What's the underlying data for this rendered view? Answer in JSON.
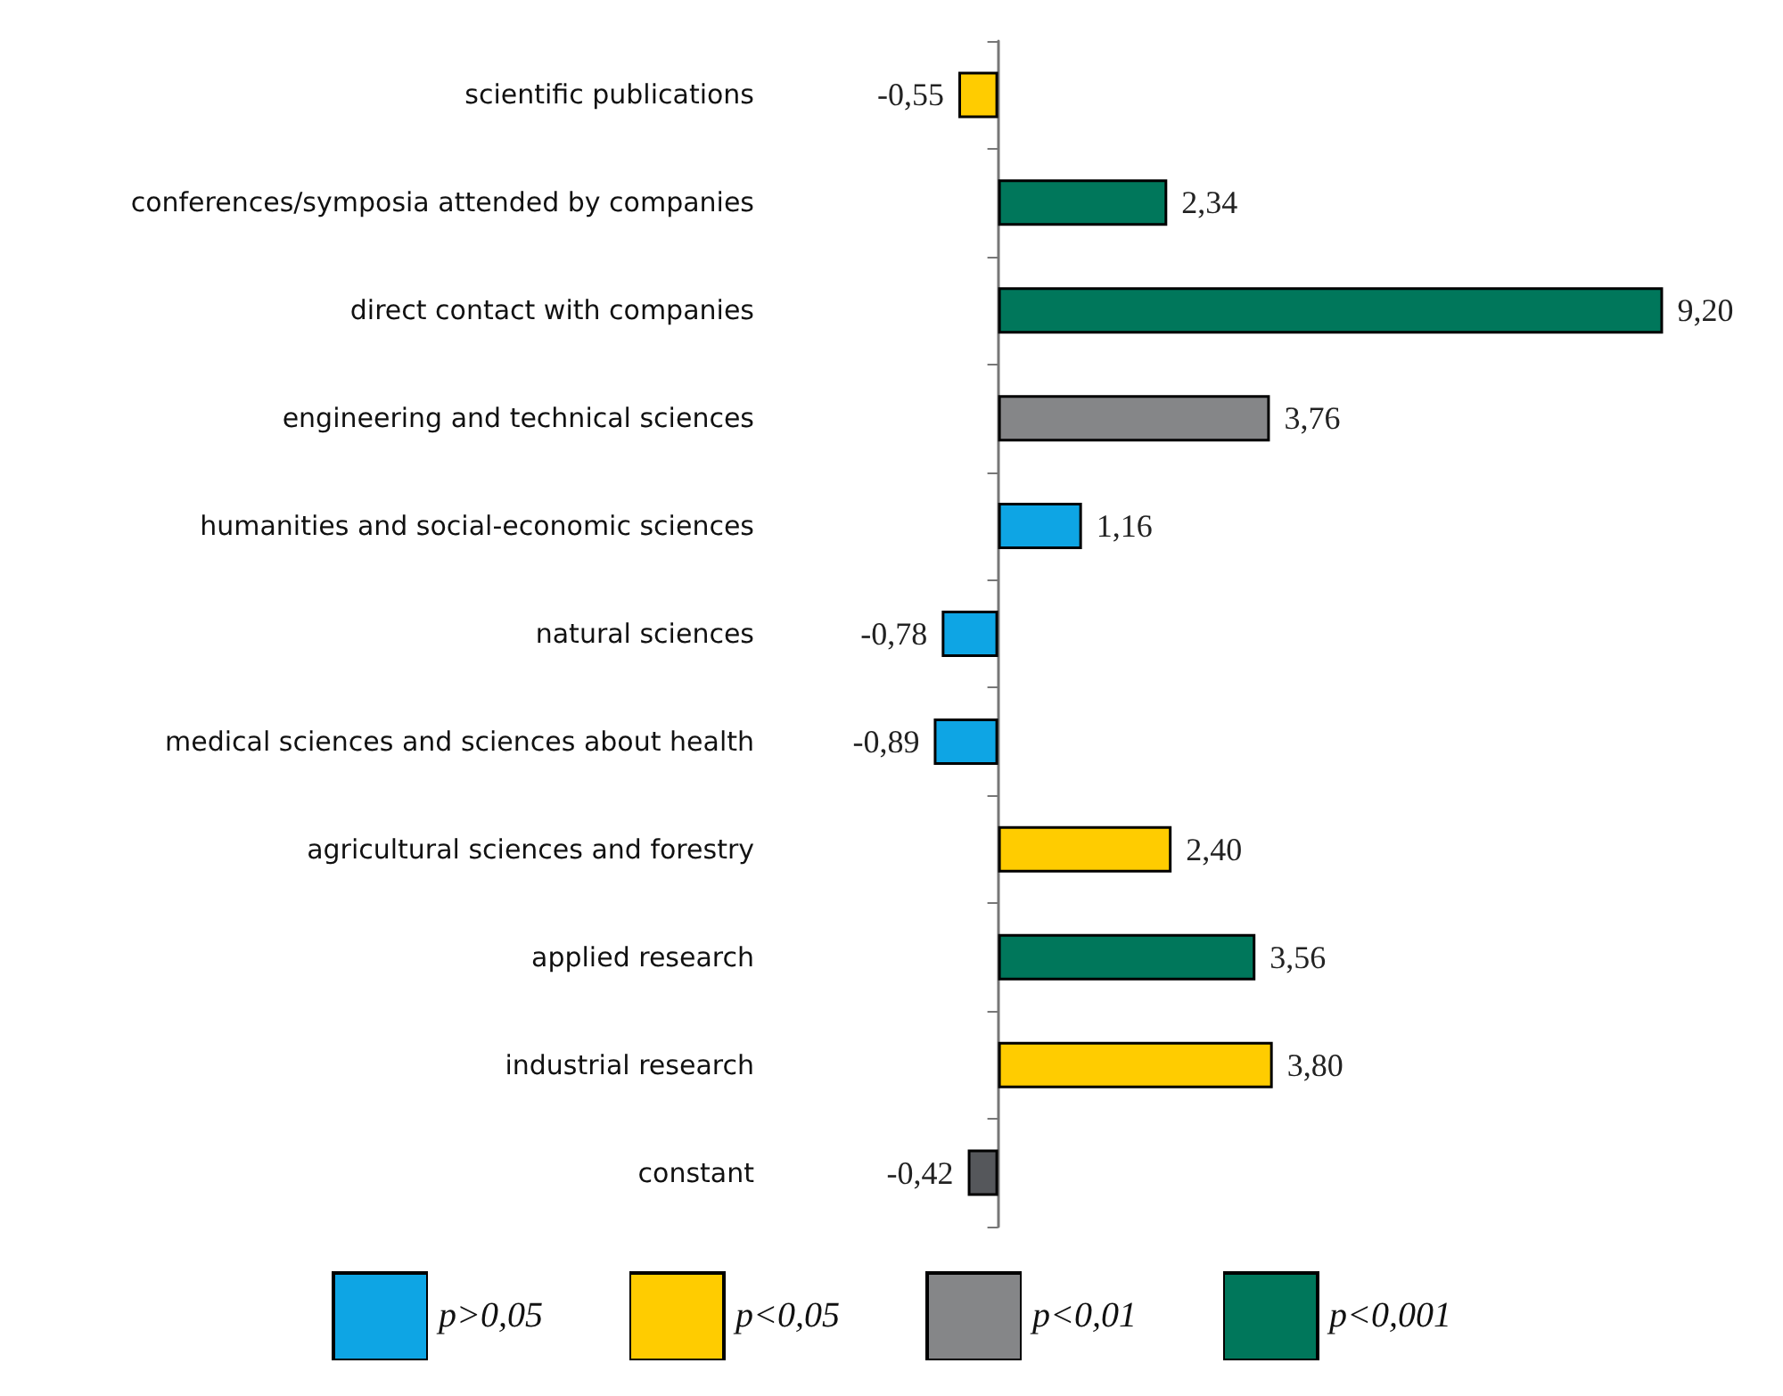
{
  "chart_data": {
    "type": "bar",
    "orientation": "horizontal",
    "categories": [
      "scientific publications",
      "conferences/symposia attended by companies",
      "direct contact with companies",
      "engineering and technical sciences",
      "humanities and social-economic sciences",
      "natural sciences",
      "medical sciences and sciences about health",
      "agricultural sciences and forestry",
      "applied research",
      "industrial research",
      "constant"
    ],
    "series": [
      {
        "name": "p>0,05",
        "color": "#0ea5e4",
        "values": [
          null,
          null,
          null,
          null,
          1.16,
          -0.78,
          -0.89,
          null,
          null,
          null,
          null
        ],
        "value_labels": [
          null,
          null,
          null,
          null,
          "1,16",
          "-0,78",
          "-0,89",
          null,
          null,
          null,
          null
        ]
      },
      {
        "name": "p<0,05",
        "color": "#ffcc00",
        "values": [
          -0.55,
          null,
          null,
          null,
          null,
          null,
          null,
          2.4,
          null,
          3.8,
          null
        ],
        "value_labels": [
          "-0,55",
          null,
          null,
          null,
          null,
          null,
          null,
          "2,40",
          null,
          "3,80",
          null
        ]
      },
      {
        "name": "p<0,01",
        "color": "#858688",
        "values": [
          null,
          null,
          null,
          3.76,
          null,
          null,
          null,
          null,
          null,
          null,
          null
        ],
        "value_labels": [
          null,
          null,
          null,
          "3,76",
          null,
          null,
          null,
          null,
          null,
          null,
          null
        ]
      },
      {
        "name": "p<0,001",
        "color": "#00775b",
        "values": [
          null,
          2.34,
          9.2,
          null,
          null,
          null,
          null,
          null,
          3.56,
          null,
          null
        ],
        "value_labels": [
          null,
          "2,34",
          "9,20",
          null,
          null,
          null,
          null,
          null,
          "3,56",
          null,
          null
        ]
      },
      {
        "color": "#55575b",
        "values": [
          null,
          null,
          null,
          null,
          null,
          null,
          null,
          null,
          null,
          null,
          -0.42
        ],
        "value_labels": [
          null,
          null,
          null,
          null,
          null,
          null,
          null,
          null,
          null,
          null,
          "-0,42"
        ]
      }
    ],
    "legend": "bottom",
    "grid": false
  }
}
